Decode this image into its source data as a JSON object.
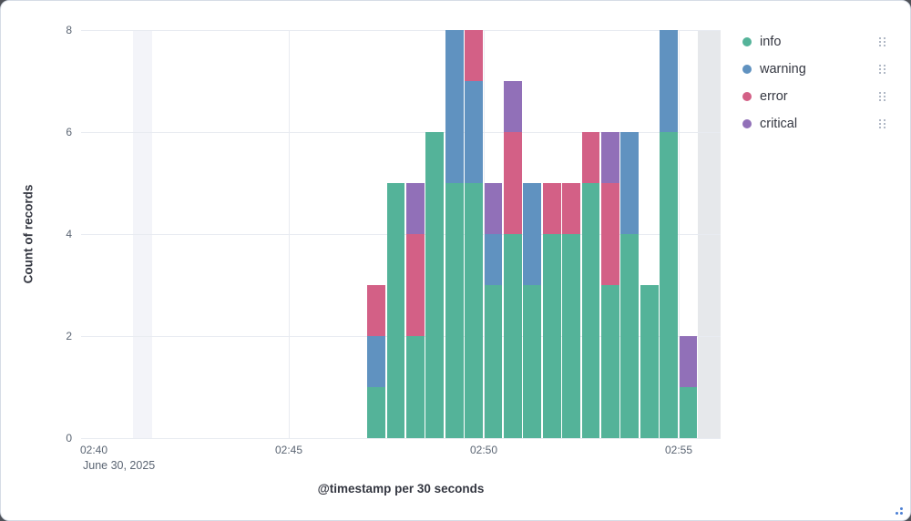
{
  "axes": {
    "y_title": "Count of records",
    "x_title": "@timestamp per 30 seconds",
    "x_secondary_label": "June 30, 2025"
  },
  "legend": {
    "position": "right",
    "items": [
      {
        "label": "info",
        "color": "#54b399"
      },
      {
        "label": "warning",
        "color": "#6092c0"
      },
      {
        "label": "error",
        "color": "#d36086"
      },
      {
        "label": "critical",
        "color": "#9170b8"
      }
    ]
  },
  "chart_data": {
    "type": "bar",
    "stacked": true,
    "title": "",
    "xlabel": "@timestamp per 30 seconds",
    "ylabel": "Count of records",
    "x_secondary_label": "June 30, 2025",
    "ylim": [
      0,
      8
    ],
    "y_ticks": [
      0,
      2,
      4,
      6,
      8
    ],
    "x_tick_labels": [
      "02:40",
      "02:45",
      "02:50",
      "02:55"
    ],
    "bucket_seconds": 30,
    "grid": true,
    "legend_position": "right",
    "categories": [
      "02:47:00",
      "02:47:30",
      "02:48:00",
      "02:48:30",
      "02:49:00",
      "02:49:30",
      "02:50:00",
      "02:50:30",
      "02:51:00",
      "02:51:30",
      "02:52:00",
      "02:52:30",
      "02:53:00",
      "02:53:30",
      "02:54:00",
      "02:54:30",
      "02:55:00"
    ],
    "series": [
      {
        "name": "info",
        "color": "#54b399",
        "values": [
          1,
          5,
          2,
          6,
          5,
          5,
          3,
          4,
          3,
          4,
          4,
          5,
          3,
          4,
          3,
          6,
          1
        ]
      },
      {
        "name": "warning",
        "color": "#6092c0",
        "values": [
          1,
          0,
          0,
          0,
          3,
          2,
          1,
          0,
          2,
          0,
          0,
          0,
          0,
          2,
          0,
          2,
          0
        ]
      },
      {
        "name": "error",
        "color": "#d36086",
        "values": [
          1,
          0,
          2,
          0,
          0,
          1,
          0,
          2,
          0,
          1,
          1,
          1,
          2,
          0,
          0,
          0,
          0
        ]
      },
      {
        "name": "critical",
        "color": "#9170b8",
        "values": [
          0,
          0,
          1,
          0,
          0,
          0,
          1,
          1,
          0,
          0,
          0,
          0,
          1,
          0,
          0,
          0,
          1
        ]
      }
    ],
    "shaded_bands": [
      {
        "from": "02:41:00",
        "to": "02:41:30",
        "color": "#f3f4f9"
      },
      {
        "from": "02:55:30",
        "to": "02:56:30",
        "color": "#e6e8eb"
      }
    ]
  }
}
